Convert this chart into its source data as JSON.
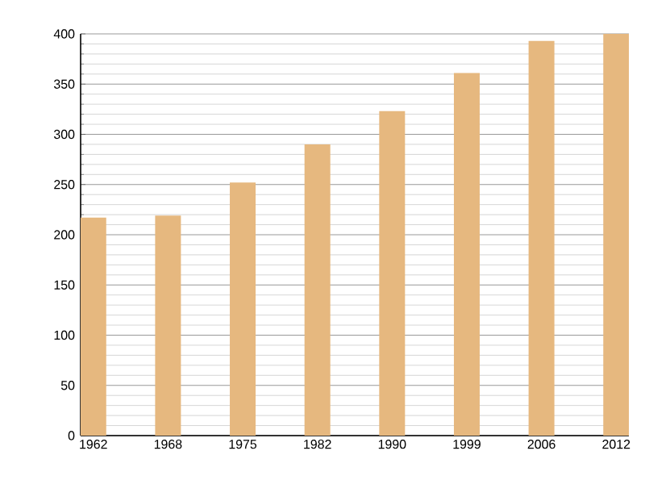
{
  "chart_data": {
    "type": "bar",
    "categories": [
      "1962",
      "1968",
      "1975",
      "1982",
      "1990",
      "1999",
      "2006",
      "2012"
    ],
    "values": [
      217,
      219,
      252,
      290,
      323,
      361,
      393,
      400
    ],
    "color": "#e6b87f",
    "ylim": [
      0,
      400
    ],
    "yticks": [
      0,
      50,
      100,
      150,
      200,
      250,
      300,
      350,
      400
    ],
    "grid": "y"
  }
}
